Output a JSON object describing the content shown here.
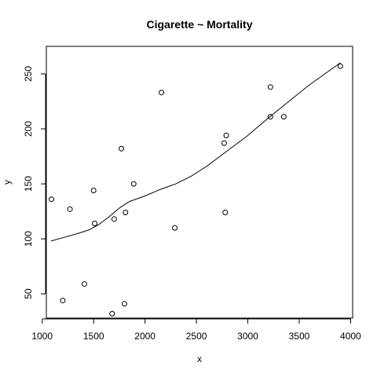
{
  "chart_data": {
    "type": "scatter",
    "title": "Cigarette ~ Mortality",
    "xlabel": "x",
    "ylabel": "y",
    "xlim": [
      1040,
      4020
    ],
    "ylim": [
      28,
      275
    ],
    "x_ticks": [
      1000,
      1500,
      2000,
      2500,
      3000,
      3500,
      4000
    ],
    "y_ticks": [
      50,
      100,
      150,
      200,
      250
    ],
    "grid": false,
    "points": [
      {
        "x": 1090,
        "y": 136
      },
      {
        "x": 1200,
        "y": 44
      },
      {
        "x": 1270,
        "y": 127
      },
      {
        "x": 1410,
        "y": 59
      },
      {
        "x": 1500,
        "y": 144
      },
      {
        "x": 1510,
        "y": 114
      },
      {
        "x": 1680,
        "y": 32
      },
      {
        "x": 1700,
        "y": 118
      },
      {
        "x": 1770,
        "y": 182
      },
      {
        "x": 1800,
        "y": 41
      },
      {
        "x": 1810,
        "y": 124
      },
      {
        "x": 1890,
        "y": 150
      },
      {
        "x": 2160,
        "y": 233
      },
      {
        "x": 2290,
        "y": 110
      },
      {
        "x": 2770,
        "y": 187
      },
      {
        "x": 2780,
        "y": 124
      },
      {
        "x": 2790,
        "y": 194
      },
      {
        "x": 3220,
        "y": 238
      },
      {
        "x": 3220,
        "y": 211
      },
      {
        "x": 3350,
        "y": 211
      },
      {
        "x": 3900,
        "y": 257
      }
    ],
    "smooth_line": {
      "x": [
        1085,
        1200,
        1350,
        1450,
        1550,
        1650,
        1750,
        1850,
        2000,
        2150,
        2300,
        2450,
        2600,
        2800,
        3000,
        3200,
        3400,
        3600,
        3900
      ],
      "y": [
        98,
        101,
        105,
        108,
        113,
        120,
        128,
        134,
        139,
        145,
        150,
        157,
        166,
        180,
        194,
        210,
        225,
        240,
        260
      ]
    }
  }
}
